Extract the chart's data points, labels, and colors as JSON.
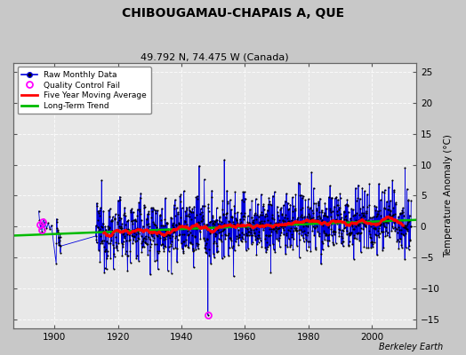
{
  "title": "CHIBOUGAMAU-CHAPAIS A, QUE",
  "subtitle": "49.792 N, 74.475 W (Canada)",
  "ylabel": "Temperature Anomaly (°C)",
  "attribution": "Berkeley Earth",
  "ylim": [
    -16.5,
    26.5
  ],
  "xlim": [
    1887,
    2014
  ],
  "yticks": [
    -15,
    -10,
    -5,
    0,
    5,
    10,
    15,
    20,
    25
  ],
  "xticks": [
    1900,
    1920,
    1940,
    1960,
    1980,
    2000
  ],
  "fig_bg_color": "#c8c8c8",
  "plot_bg_color": "#e8e8e8",
  "raw_line_color": "#0000dd",
  "raw_dot_color": "#000000",
  "qc_fail_color": "#ff00ff",
  "moving_avg_color": "#ff0000",
  "trend_color": "#00bb00",
  "grid_color": "#ffffff",
  "seed": 12345
}
